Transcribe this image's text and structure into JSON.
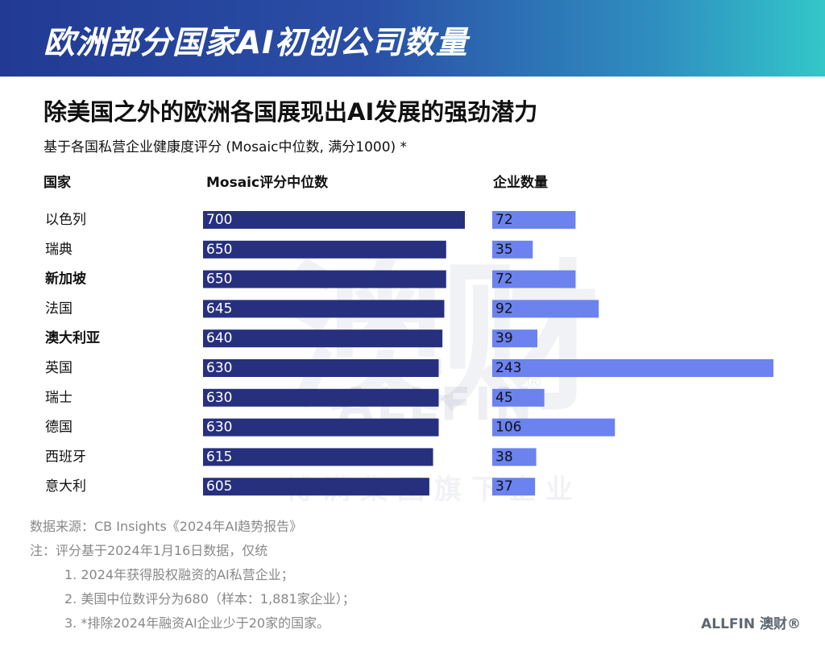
{
  "header": {
    "banner_title": "欧洲部分国家AI初创公司数量",
    "headline": "除美国之外的欧洲各国展现出AI发展的强劲潜力",
    "subhead": "基于各国私营企业健康度评分 (Mosaic中位数, 满分1000) *"
  },
  "columns": {
    "country": "国家",
    "mosaic": "Mosaic评分中位数",
    "count": "企业数量"
  },
  "colors": {
    "bar_mosaic": "#27307e",
    "bar_count": "#6b82ef",
    "banner_start": "#223a94",
    "banner_end": "#33c7c9"
  },
  "chart_data": {
    "type": "bar",
    "orientation": "horizontal",
    "categories": [
      "以色列",
      "瑞典",
      "新加坡",
      "法国",
      "澳大利亚",
      "英国",
      "瑞士",
      "德国",
      "西班牙",
      "意大利"
    ],
    "series": [
      {
        "name": "Mosaic评分中位数",
        "values": [
          700,
          650,
          650,
          645,
          640,
          630,
          630,
          630,
          615,
          605
        ]
      },
      {
        "name": "企业数量",
        "values": [
          72,
          35,
          72,
          92,
          39,
          243,
          45,
          106,
          38,
          37
        ]
      }
    ],
    "bold_categories": [
      "新加坡",
      "澳大利亚"
    ],
    "xlim_mosaic": [
      0,
      700
    ],
    "xlim_count": [
      0,
      243
    ]
  },
  "watermark": {
    "big": "澳财",
    "allfin": "ALLFIN",
    "reg": "®",
    "line": "博满集团旗下企业"
  },
  "footer": {
    "source": "数据来源：CB Insights《2024年AI趋势报告》",
    "note": "注：评分基于2024年1月16日数据，仅统",
    "items": [
      "1.   2024年获得股权融资的AI私营企业；",
      "2.   美国中位数评分为680（样本：1,881家企业）；",
      "3.   *排除2024年融资AI企业少于20家的国家。"
    ],
    "brand": "ALLFIN 澳财®"
  }
}
